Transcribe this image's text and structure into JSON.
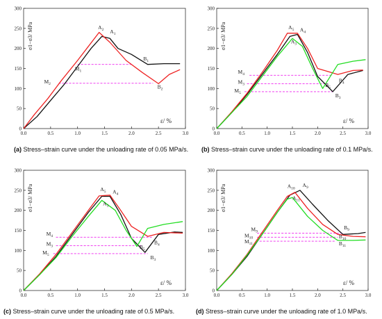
{
  "captions": [
    {
      "letter": "(a)",
      "text": " Stress–strain curve under the unloading rate of 0.05 MPa/s."
    },
    {
      "letter": "(b)",
      "text": " Stress–strain curve under the unloading rate of 0.1 MPa/s."
    },
    {
      "letter": "(c)",
      "text": " Stress–strain curve under the unloading rate of 0.5 MPa/s."
    },
    {
      "letter": "(d)",
      "text": " Stress–strain curve under the unloading rate of 1.0 MPa/s."
    }
  ],
  "colors": {
    "black": "#111111",
    "red": "#ee2222",
    "green": "#22dd22",
    "magenta": "#ee22ee",
    "axis": "#333333"
  },
  "chart_data": [
    {
      "type": "line",
      "ylabel": "σ1−σ3/ MPa",
      "xlabel": "ε/ %",
      "xlim": [
        0,
        3.0
      ],
      "ylim": [
        0,
        300
      ],
      "xticks": [
        "0.0",
        "0.5",
        "1.0",
        "1.5",
        "2.0",
        "2.5",
        "3.0"
      ],
      "yticks": [
        "0",
        "50",
        "100",
        "150",
        "200",
        "250",
        "300"
      ],
      "series": [
        {
          "color": "black",
          "x": [
            0,
            0.25,
            0.5,
            0.75,
            1.0,
            1.25,
            1.45,
            1.6,
            1.75,
            2.0,
            2.3,
            2.6,
            2.9
          ],
          "y": [
            0,
            30,
            70,
            110,
            155,
            200,
            230,
            225,
            200,
            185,
            160,
            162,
            162
          ]
        },
        {
          "color": "red",
          "x": [
            0,
            0.2,
            0.45,
            0.7,
            1.0,
            1.2,
            1.4,
            1.6,
            1.9,
            2.2,
            2.5,
            2.7,
            2.9
          ],
          "y": [
            0,
            35,
            75,
            120,
            170,
            205,
            240,
            215,
            170,
            140,
            112,
            135,
            147
          ]
        }
      ],
      "hlines": [
        {
          "y": 160,
          "x": [
            1.0,
            2.0
          ]
        },
        {
          "y": 113,
          "x": [
            0.65,
            2.4
          ]
        }
      ],
      "annotations": [
        {
          "label": "A",
          "sub": "2",
          "x": 1.38,
          "y": 248
        },
        {
          "label": "A",
          "sub": "1",
          "x": 1.6,
          "y": 238
        },
        {
          "label": "B",
          "sub": "1",
          "x": 2.22,
          "y": 170
        },
        {
          "label": "B",
          "sub": "2",
          "x": 2.48,
          "y": 100
        },
        {
          "label": "M",
          "sub": "1",
          "x": 0.95,
          "y": 145
        },
        {
          "label": "M",
          "sub": "2",
          "x": 0.38,
          "y": 113
        }
      ]
    },
    {
      "type": "line",
      "ylabel": "σ1−σ3/ MPa",
      "xlabel": "ε/ %",
      "xlim": [
        0,
        3.0
      ],
      "ylim": [
        0,
        300
      ],
      "xticks": [
        "0.0",
        "0.5",
        "1.0",
        "1.5",
        "2.0",
        "2.5",
        "3.0"
      ],
      "yticks": [
        "0",
        "50",
        "100",
        "150",
        "200",
        "250",
        "300"
      ],
      "series": [
        {
          "color": "black",
          "x": [
            0,
            0.3,
            0.6,
            0.9,
            1.2,
            1.45,
            1.6,
            1.8,
            2.0,
            2.3,
            2.6,
            2.9
          ],
          "y": [
            0,
            40,
            85,
            135,
            185,
            230,
            235,
            190,
            130,
            92,
            135,
            145
          ]
        },
        {
          "color": "red",
          "x": [
            0,
            0.3,
            0.6,
            0.9,
            1.2,
            1.4,
            1.6,
            1.8,
            2.0,
            2.4,
            2.7,
            2.9
          ],
          "y": [
            0,
            42,
            88,
            140,
            195,
            238,
            238,
            200,
            150,
            135,
            145,
            146
          ]
        },
        {
          "color": "green",
          "x": [
            0,
            0.3,
            0.6,
            0.9,
            1.2,
            1.5,
            1.7,
            1.9,
            2.1,
            2.4,
            2.7,
            2.95
          ],
          "y": [
            0,
            40,
            80,
            130,
            180,
            225,
            205,
            150,
            100,
            160,
            168,
            172
          ]
        }
      ],
      "hlines": [
        {
          "y": 133,
          "x": [
            0.65,
            2.3
          ]
        },
        {
          "y": 112,
          "x": [
            0.6,
            2.2
          ]
        },
        {
          "y": 92,
          "x": [
            0.55,
            2.3
          ]
        }
      ],
      "annotations": [
        {
          "label": "A",
          "sub": "5",
          "x": 1.42,
          "y": 248
        },
        {
          "label": "A",
          "sub": "4",
          "x": 1.65,
          "y": 242
        },
        {
          "label": "A",
          "sub": "3",
          "x": 1.47,
          "y": 212
        },
        {
          "label": "M",
          "sub": "4",
          "x": 0.42,
          "y": 137
        },
        {
          "label": "M",
          "sub": "3",
          "x": 0.42,
          "y": 112
        },
        {
          "label": "M",
          "sub": "5",
          "x": 0.35,
          "y": 90
        },
        {
          "label": "B",
          "sub": "4",
          "x": 2.42,
          "y": 115
        },
        {
          "label": "B",
          "sub": "5",
          "x": 2.15,
          "y": 104
        },
        {
          "label": "B",
          "sub": "3",
          "x": 2.35,
          "y": 78
        }
      ]
    },
    {
      "type": "line",
      "ylabel": "σ1−σ3/ MPa",
      "xlabel": "ε/ %",
      "xlim": [
        0,
        3.0
      ],
      "ylim": [
        0,
        300
      ],
      "xticks": [
        "0.0",
        "0.5",
        "1.0",
        "1.5",
        "2.0",
        "2.5",
        "3.0"
      ],
      "yticks": [
        "0",
        "50",
        "100",
        "150",
        "200",
        "250",
        "300"
      ],
      "series": [
        {
          "color": "black",
          "x": [
            0,
            0.3,
            0.6,
            0.9,
            1.2,
            1.45,
            1.6,
            1.8,
            2.0,
            2.25,
            2.5,
            2.8,
            2.95
          ],
          "y": [
            0,
            40,
            85,
            140,
            195,
            235,
            235,
            190,
            130,
            95,
            140,
            146,
            145
          ]
        },
        {
          "color": "red",
          "x": [
            0,
            0.3,
            0.6,
            0.9,
            1.2,
            1.4,
            1.6,
            1.8,
            2.0,
            2.3,
            2.6,
            2.95
          ],
          "y": [
            0,
            42,
            90,
            145,
            200,
            236,
            238,
            200,
            160,
            135,
            145,
            143
          ]
        },
        {
          "color": "green",
          "x": [
            0,
            0.3,
            0.6,
            0.9,
            1.2,
            1.45,
            1.7,
            1.9,
            2.1,
            2.3,
            2.6,
            2.95
          ],
          "y": [
            0,
            40,
            82,
            135,
            185,
            225,
            200,
            150,
            110,
            155,
            165,
            172
          ]
        }
      ],
      "hlines": [
        {
          "y": 133,
          "x": [
            0.6,
            2.4
          ]
        },
        {
          "y": 112,
          "x": [
            0.6,
            2.2
          ]
        },
        {
          "y": 92,
          "x": [
            0.55,
            2.3
          ]
        }
      ],
      "annotations": [
        {
          "label": "A",
          "sub": "5",
          "x": 1.42,
          "y": 248
        },
        {
          "label": "A",
          "sub": "4",
          "x": 1.65,
          "y": 242
        },
        {
          "label": "A",
          "sub": "3",
          "x": 1.47,
          "y": 212
        },
        {
          "label": "M",
          "sub": "4",
          "x": 0.42,
          "y": 137
        },
        {
          "label": "M",
          "sub": "3",
          "x": 0.42,
          "y": 112
        },
        {
          "label": "M",
          "sub": "5",
          "x": 0.35,
          "y": 90
        },
        {
          "label": "B",
          "sub": "4",
          "x": 2.42,
          "y": 115
        },
        {
          "label": "B",
          "sub": "5",
          "x": 2.15,
          "y": 104
        },
        {
          "label": "B",
          "sub": "3",
          "x": 2.35,
          "y": 78
        }
      ]
    },
    {
      "type": "line",
      "ylabel": "σ1−σ3/ MPa",
      "xlabel": "ε/ %",
      "xlim": [
        0,
        3.0
      ],
      "ylim": [
        0,
        300
      ],
      "xticks": [
        "0.0",
        "0.5",
        "1.0",
        "1.5",
        "2.0",
        "2.5",
        "3.0"
      ],
      "yticks": [
        "0",
        "50",
        "100",
        "150",
        "200",
        "250",
        "300"
      ],
      "series": [
        {
          "color": "black",
          "x": [
            0,
            0.3,
            0.6,
            0.9,
            1.2,
            1.45,
            1.65,
            1.9,
            2.2,
            2.5,
            2.8,
            2.95
          ],
          "y": [
            0,
            40,
            85,
            140,
            195,
            238,
            250,
            215,
            175,
            140,
            142,
            145
          ]
        },
        {
          "color": "red",
          "x": [
            0,
            0.3,
            0.6,
            0.9,
            1.2,
            1.4,
            1.55,
            1.8,
            2.1,
            2.4,
            2.7,
            2.95
          ],
          "y": [
            0,
            42,
            90,
            145,
            200,
            235,
            245,
            205,
            165,
            140,
            135,
            134
          ]
        },
        {
          "color": "green",
          "x": [
            0,
            0.3,
            0.6,
            0.9,
            1.2,
            1.4,
            1.5,
            1.8,
            2.1,
            2.4,
            2.7,
            2.95
          ],
          "y": [
            0,
            40,
            88,
            140,
            195,
            228,
            232,
            185,
            150,
            125,
            125,
            126
          ]
        }
      ],
      "hlines": [
        {
          "y": 143,
          "x": [
            0.8,
            2.5
          ]
        },
        {
          "y": 133,
          "x": [
            0.8,
            2.4
          ]
        },
        {
          "y": 123,
          "x": [
            0.85,
            2.35
          ]
        }
      ],
      "annotations": [
        {
          "label": "A",
          "sub": "10",
          "x": 1.4,
          "y": 256
        },
        {
          "label": "A",
          "sub": "9",
          "x": 1.7,
          "y": 258
        },
        {
          "label": "A",
          "sub": "11",
          "x": 1.5,
          "y": 226
        },
        {
          "label": "M",
          "sub": "9",
          "x": 0.68,
          "y": 148
        },
        {
          "label": "M",
          "sub": "10",
          "x": 0.55,
          "y": 133
        },
        {
          "label": "M",
          "sub": "11",
          "x": 0.55,
          "y": 118
        },
        {
          "label": "B",
          "sub": "9",
          "x": 2.52,
          "y": 153
        },
        {
          "label": "B",
          "sub": "10",
          "x": 2.42,
          "y": 130
        },
        {
          "label": "B",
          "sub": "11",
          "x": 2.42,
          "y": 113
        }
      ]
    }
  ]
}
